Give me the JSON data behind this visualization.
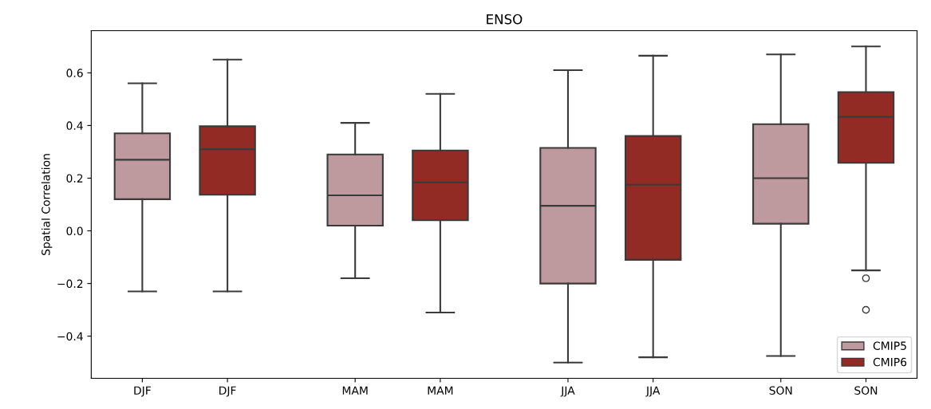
{
  "chart_data": {
    "type": "box",
    "title": "ENSO",
    "ylabel": "Spatial Correlation",
    "categories": [
      "DJF",
      "DJF",
      "MAM",
      "MAM",
      "JJA",
      "JJA",
      "SON",
      "SON"
    ],
    "ylim": [
      -0.56,
      0.76
    ],
    "yticks": [
      {
        "value": -0.4,
        "label": "−0.4"
      },
      {
        "value": -0.2,
        "label": "−0.2"
      },
      {
        "value": 0.0,
        "label": "0.0"
      },
      {
        "value": 0.2,
        "label": "0.2"
      },
      {
        "value": 0.4,
        "label": "0.4"
      },
      {
        "value": 0.6,
        "label": "0.6"
      }
    ],
    "grid": false,
    "legend": "lower right",
    "series": [
      {
        "name": "CMIP5",
        "color": "#be9a9e",
        "boxes": [
          {
            "low": -0.23,
            "q1": 0.12,
            "median": 0.27,
            "q3": 0.37,
            "high": 0.56
          },
          null,
          {
            "low": -0.18,
            "q1": 0.02,
            "median": 0.135,
            "q3": 0.29,
            "high": 0.41
          },
          null,
          {
            "low": -0.5,
            "q1": -0.2,
            "median": 0.095,
            "q3": 0.315,
            "high": 0.61
          },
          null,
          {
            "low": -0.475,
            "q1": 0.027,
            "median": 0.2,
            "q3": 0.405,
            "high": 0.67
          },
          null
        ]
      },
      {
        "name": "CMIP6",
        "color": "#922b24",
        "boxes": [
          null,
          {
            "low": -0.23,
            "q1": 0.137,
            "median": 0.31,
            "q3": 0.397,
            "high": 0.65
          },
          null,
          {
            "low": -0.31,
            "q1": 0.04,
            "median": 0.184,
            "q3": 0.305,
            "high": 0.52
          },
          null,
          {
            "low": -0.48,
            "q1": -0.11,
            "median": 0.175,
            "q3": 0.36,
            "high": 0.665
          },
          null,
          {
            "low": -0.15,
            "q1": 0.258,
            "median": 0.433,
            "q3": 0.527,
            "high": 0.7,
            "outliers": [
              -0.18,
              -0.3
            ]
          }
        ]
      }
    ]
  }
}
